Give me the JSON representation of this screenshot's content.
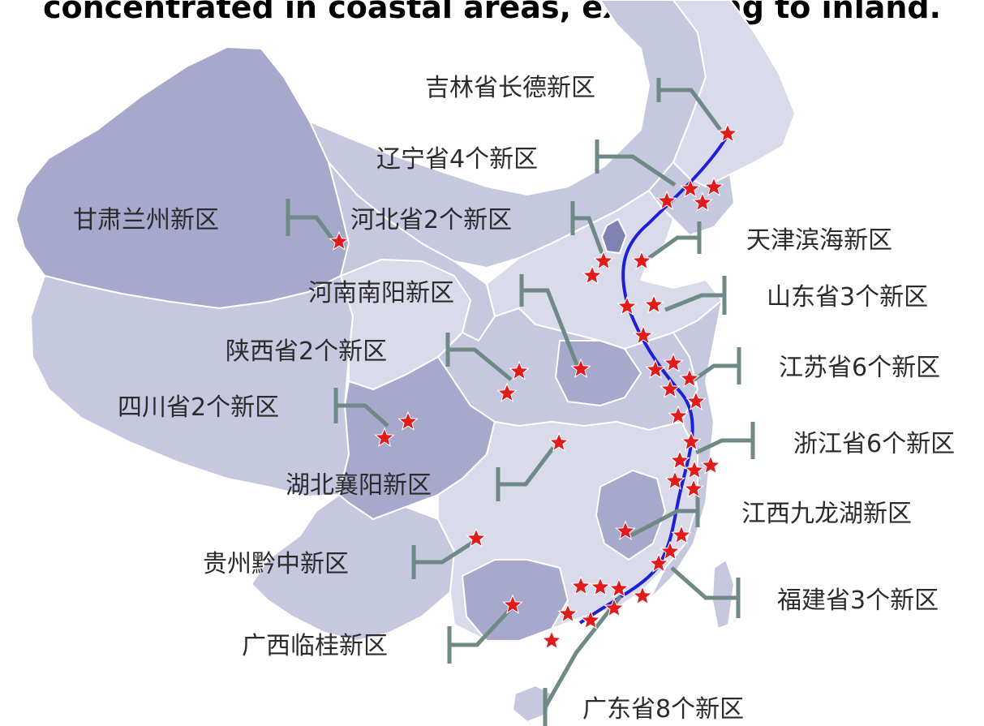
{
  "title": "concentrated in coastal areas, expanding  to inland.",
  "colors": {
    "map_base": "#c6c8df",
    "map_light": "#d9daea",
    "map_dark": "#a6a9cc",
    "border": "#ffffff",
    "corridor_line": "#1f1fd6",
    "star": "#e01b1b",
    "leader": "#6f8a86"
  },
  "labels": {
    "jilin": "吉林省长德新区",
    "liaoning": "辽宁省4个新区",
    "gansu": "甘肃兰州新区",
    "hebei": "河北省2个新区",
    "tianjin": "天津滨海新区",
    "henan": "河南南阳新区",
    "shandong": "山东省3个新区",
    "shaanxi": "陕西省2个新区",
    "jiangsu": "江苏省6个新区",
    "sichuan": "四川省2个新区",
    "zhejiang": "浙江省6个新区",
    "hubei": "湖北襄阳新区",
    "jiangxi": "江西九龙湖新区",
    "guizhou": "贵州黔中新区",
    "fujian": "福建省3个新区",
    "guangxi": "广西临桂新区",
    "guangdong": "广东省8个新区"
  },
  "markers": {
    "icon": "star-icon",
    "count": 47
  }
}
